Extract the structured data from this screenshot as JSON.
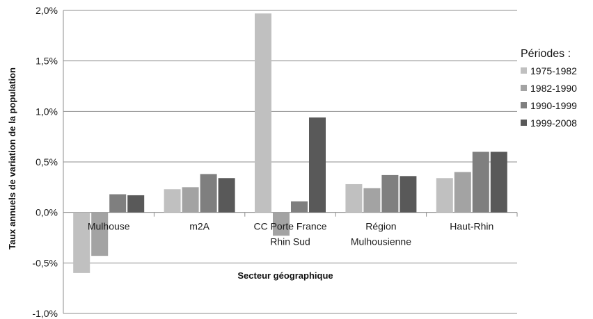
{
  "chart_data": {
    "type": "bar",
    "categories": [
      [
        "Mulhouse"
      ],
      [
        "m2A"
      ],
      [
        "CC Porte France",
        "Rhin Sud"
      ],
      [
        "Région",
        "Mulhousienne"
      ],
      [
        "Haut-Rhin"
      ]
    ],
    "series": [
      {
        "name": "1975-1982",
        "color": "#c0c0c0",
        "values": [
          -0.6,
          0.23,
          1.97,
          0.28,
          0.34
        ]
      },
      {
        "name": "1982-1990",
        "color": "#a3a3a3",
        "values": [
          -0.43,
          0.25,
          -0.23,
          0.24,
          0.4
        ]
      },
      {
        "name": "1990-1999",
        "color": "#7f7f7f",
        "values": [
          0.18,
          0.38,
          0.11,
          0.37,
          0.6
        ]
      },
      {
        "name": "1999-2008",
        "color": "#595959",
        "values": [
          0.17,
          0.34,
          0.94,
          0.36,
          0.6
        ]
      }
    ],
    "y_ticks": [
      -1.0,
      -0.5,
      0.0,
      0.5,
      1.0,
      1.5,
      2.0
    ],
    "y_tick_labels": [
      "-1,0%",
      "-0,5%",
      "0,0%",
      "0,5%",
      "1,0%",
      "1,5%",
      "2,0%"
    ],
    "ylim": [
      -1.0,
      2.0
    ],
    "xlabel": "Secteur géographique",
    "ylabel": "Taux annuels de variation de la population",
    "legend_title": "Périodes :",
    "legend_position": "right",
    "grid": true,
    "gridline_color": "#8c8c8c"
  }
}
